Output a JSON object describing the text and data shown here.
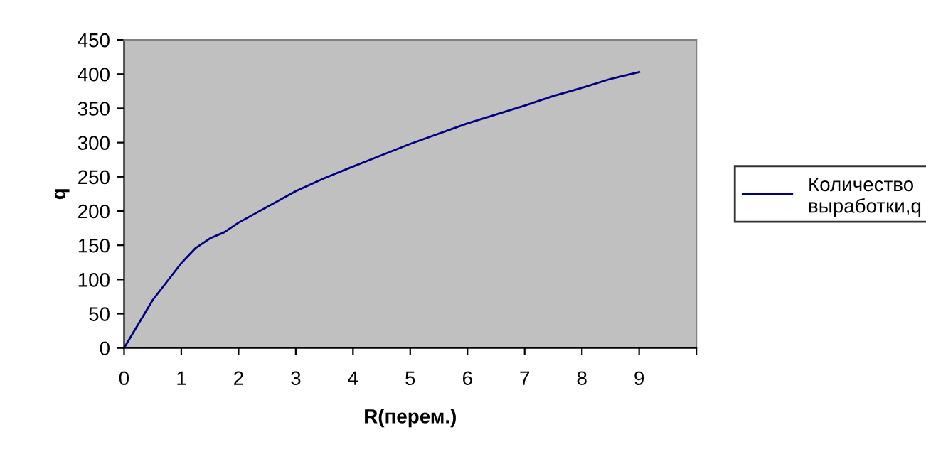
{
  "chart_data": {
    "type": "line",
    "xlabel": "R(перем.)",
    "ylabel": "q",
    "x": [
      0,
      0.5,
      1,
      1.25,
      1.5,
      1.75,
      2,
      3,
      3.5,
      4,
      5,
      6,
      7,
      7.5,
      8,
      8.5,
      9
    ],
    "series": [
      {
        "name": "Количество выработки,q",
        "color": "#000080",
        "values": [
          0,
          70,
          124,
          146,
          160,
          169,
          183,
          229,
          248,
          265,
          298,
          328,
          354,
          368,
          380,
          393,
          403
        ]
      }
    ],
    "xlim": [
      0,
      10
    ],
    "xticks": [
      0,
      1,
      2,
      3,
      4,
      5,
      6,
      7,
      8,
      9,
      {
        "value": 10,
        "label": null
      }
    ],
    "ylim": [
      0,
      450
    ],
    "yticks": [
      0,
      50,
      100,
      150,
      200,
      250,
      300,
      350,
      400,
      450
    ],
    "grid": false,
    "legend": "right",
    "marker": "none",
    "line_style": "solid"
  }
}
